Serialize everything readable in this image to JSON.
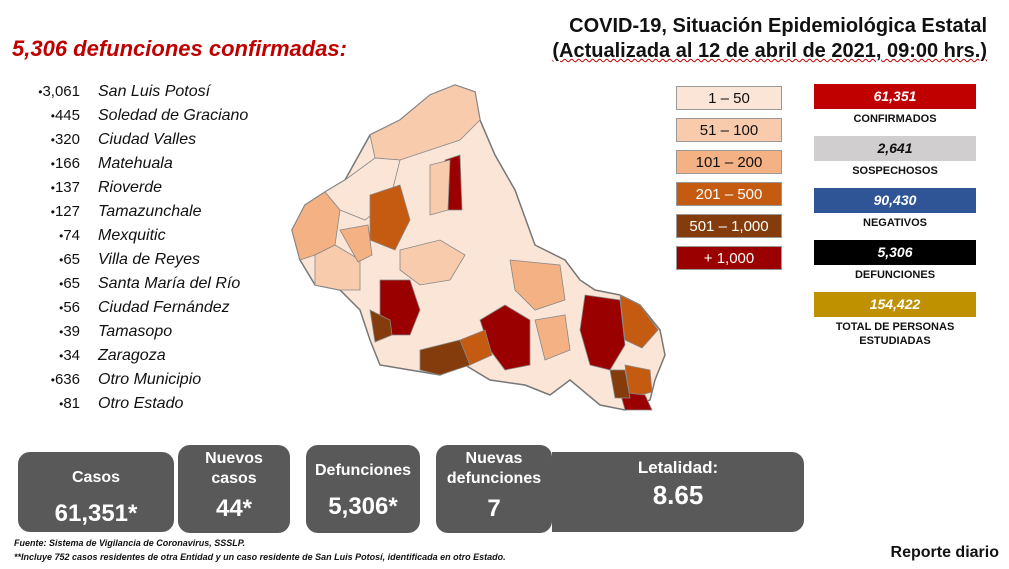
{
  "headline": "5,306 defunciones  confirmadas:",
  "title_line1": "COVID-19, Situación Epidemiológica Estatal",
  "title_line2": "(Actualizada al  12 de abril de 2021, 09:00 hrs.)",
  "municipios": [
    {
      "value": "3,061",
      "name": "San Luis Potosí"
    },
    {
      "value": "445",
      "name": "Soledad de Graciano"
    },
    {
      "value": "320",
      "name": "Ciudad Valles"
    },
    {
      "value": "166",
      "name": "Matehuala"
    },
    {
      "value": "137",
      "name": "Rioverde"
    },
    {
      "value": "127",
      "name": "Tamazunchale"
    },
    {
      "value": "74",
      "name": "Mexquitic"
    },
    {
      "value": "65",
      "name": "Villa de Reyes"
    },
    {
      "value": "65",
      "name": "Santa María del Río"
    },
    {
      "value": "56",
      "name": "Ciudad Fernández"
    },
    {
      "value": "39",
      "name": "Tamasopo"
    },
    {
      "value": "34",
      "name": "Zaragoza"
    },
    {
      "value": "636",
      "name": "Otro Municipio"
    },
    {
      "value": "81",
      "name": "Otro Estado"
    }
  ],
  "legend": [
    {
      "label": "1 – 50",
      "color": "#fbe5d6",
      "text_color": "#111111"
    },
    {
      "label": "51 – 100",
      "color": "#f8cbad",
      "text_color": "#111111"
    },
    {
      "label": "101 – 200",
      "color": "#f4b183",
      "text_color": "#111111"
    },
    {
      "label": "201 – 500",
      "color": "#c55a11",
      "text_color": "#ffffff"
    },
    {
      "label": "501 – 1,000",
      "color": "#843c0c",
      "text_color": "#ffffff"
    },
    {
      "label": "+ 1,000",
      "color": "#9b0000",
      "text_color": "#ffffff"
    }
  ],
  "stats": [
    {
      "value": "61,351",
      "label": "CONFIRMADOS",
      "color": "#c00000",
      "text_color": "#ffffff"
    },
    {
      "value": "2,641",
      "label": "SOSPECHOSOS",
      "color": "#d0cece",
      "text_color": "#111111"
    },
    {
      "value": "90,430",
      "label": "NEGATIVOS",
      "color": "#2f5597",
      "text_color": "#ffffff"
    },
    {
      "value": "5,306",
      "label": "DEFUNCIONES",
      "color": "#000000",
      "text_color": "#ffffff"
    },
    {
      "value": "154,422",
      "label": "TOTAL DE PERSONAS ESTUDIADAS",
      "color": "#bf9000",
      "text_color": "#ffffff"
    }
  ],
  "cards": [
    {
      "label": "Casos",
      "value": "61,351*"
    },
    {
      "label": "Nuevos casos",
      "value": "44*"
    },
    {
      "label": "Defunciones",
      "value": "5,306*"
    },
    {
      "label": "Nuevas defunciones",
      "value": "7"
    },
    {
      "label": "Letalidad:",
      "value": "8.65"
    }
  ],
  "footnote1": "Fuente: Sistema de Vigilancia de Coronavirus, SSSLP.",
  "footnote2": "**Incluye 752 casos residentes de otra Entidad y un caso residente de San Luis Potosí, identificada en otro Estado.",
  "report_label": "Reporte diario"
}
